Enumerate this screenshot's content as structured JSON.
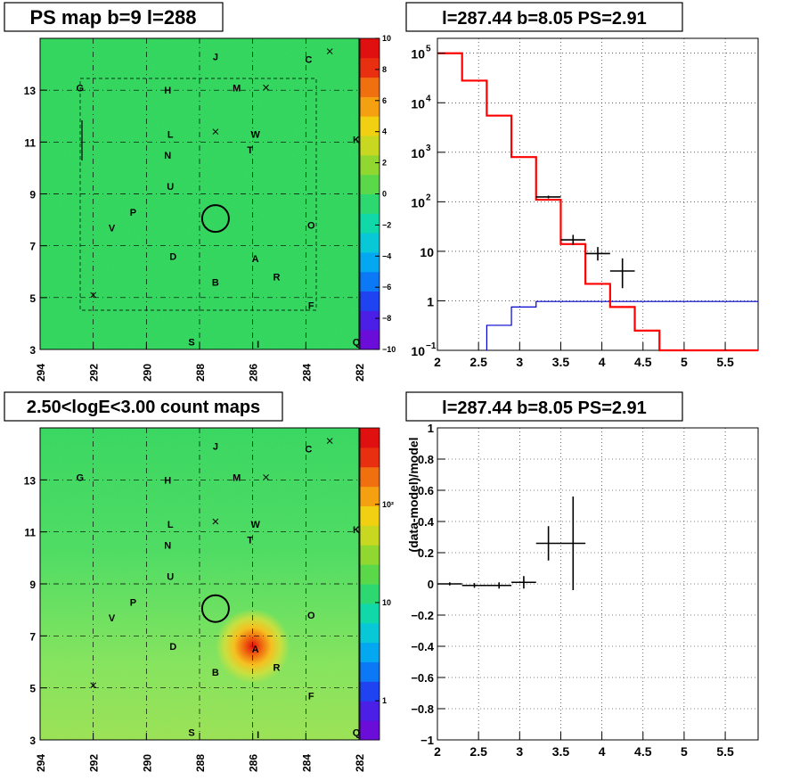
{
  "panels": {
    "tl": {
      "title": "PS map b=9 l=288",
      "x_ticks": [
        "294",
        "292",
        "290",
        "288",
        "286",
        "284",
        "282"
      ],
      "y_ticks": [
        "3",
        "5",
        "7",
        "9",
        "11",
        "13"
      ],
      "colorbar_ticks": [
        "10",
        "8",
        "6",
        "4",
        "2",
        "0",
        "−2",
        "−4",
        "−6",
        "−8",
        "−10"
      ]
    },
    "tr": {
      "title": "l=287.44 b=8.05 PS=2.91",
      "x_ticks": [
        "2",
        "2.5",
        "3",
        "3.5",
        "4",
        "4.5",
        "5",
        "5.5"
      ],
      "y_ticks": [
        {
          "base": "10",
          "exp": "5"
        },
        {
          "base": "10",
          "exp": "4"
        },
        {
          "base": "10",
          "exp": "3"
        },
        {
          "base": "10",
          "exp": "2"
        },
        {
          "base": "10",
          "exp": ""
        },
        {
          "base": "1",
          "exp": ""
        },
        {
          "base": "10",
          "exp": "−1"
        }
      ]
    },
    "bl": {
      "title": "2.50<logE<3.00 count maps",
      "x_ticks": [
        "294",
        "292",
        "290",
        "288",
        "286",
        "284",
        "282"
      ],
      "y_ticks": [
        "3",
        "5",
        "7",
        "9",
        "11",
        "13"
      ],
      "colorbar_ticks": [
        "10²",
        "10",
        "1"
      ]
    },
    "br": {
      "title": "l=287.44 b=8.05 PS=2.91",
      "ylabel": "(data-model)/model",
      "x_ticks": [
        "2",
        "2.5",
        "3",
        "3.5",
        "4",
        "4.5",
        "5",
        "5.5"
      ],
      "y_ticks": [
        "1",
        "0.8",
        "0.6",
        "0.4",
        "0.2",
        "0",
        "−0.2",
        "−0.4",
        "−0.6",
        "−0.8",
        "−1"
      ]
    }
  },
  "source_labels": [
    {
      "t": "J",
      "l": 287.4,
      "b": 14.3
    },
    {
      "t": "C",
      "l": 283.9,
      "b": 14.2
    },
    {
      "t": "G",
      "l": 292.5,
      "b": 13.1
    },
    {
      "t": "H",
      "l": 289.2,
      "b": 13.0
    },
    {
      "t": "M",
      "l": 286.6,
      "b": 13.1
    },
    {
      "t": "L",
      "l": 289.1,
      "b": 11.3
    },
    {
      "t": "W",
      "l": 285.9,
      "b": 11.3
    },
    {
      "t": "K",
      "l": 282.1,
      "b": 11.1
    },
    {
      "t": "N",
      "l": 289.2,
      "b": 10.5
    },
    {
      "t": "T",
      "l": 286.1,
      "b": 10.7
    },
    {
      "t": "U",
      "l": 289.1,
      "b": 9.3
    },
    {
      "t": "P",
      "l": 290.5,
      "b": 8.3
    },
    {
      "t": "V",
      "l": 291.3,
      "b": 7.7
    },
    {
      "t": "O",
      "l": 283.8,
      "b": 7.8
    },
    {
      "t": "D",
      "l": 289.0,
      "b": 6.6
    },
    {
      "t": "A",
      "l": 285.9,
      "b": 6.5
    },
    {
      "t": "R",
      "l": 285.1,
      "b": 5.8
    },
    {
      "t": "B",
      "l": 287.4,
      "b": 5.6
    },
    {
      "t": "F",
      "l": 283.8,
      "b": 4.7
    },
    {
      "t": "S",
      "l": 288.3,
      "b": 3.3
    },
    {
      "t": "I",
      "l": 285.8,
      "b": 3.2
    },
    {
      "t": "Q",
      "l": 282.1,
      "b": 3.3
    }
  ],
  "markers": [
    {
      "l": 283.1,
      "b": 14.5
    },
    {
      "l": 285.5,
      "b": 13.1
    },
    {
      "l": 287.4,
      "b": 11.4
    },
    {
      "l": 292.0,
      "b": 5.1
    }
  ],
  "circle": {
    "l": 287.4,
    "b": 8.05
  },
  "colors": {
    "map_background": "#2ed25a",
    "hotspot": "#e01010",
    "model_line": "#ff0000",
    "background_line": "#0000cc",
    "data_points": "#000000"
  },
  "chart_data": [
    {
      "panel": "PS map",
      "type": "heatmap",
      "title": "PS map b=9 l=288",
      "xlim": [
        294,
        282
      ],
      "ylim": [
        3,
        15
      ],
      "zlim": [
        -10,
        10
      ],
      "values_description_levels": "uniform near 0"
    },
    {
      "panel": "spectrum",
      "type": "line",
      "title": "l=287.44 b=8.05 PS=2.91",
      "xlim": [
        2,
        5.9
      ],
      "ylim": [
        0.1,
        200000
      ],
      "y_scale": "log",
      "series": [
        {
          "role": "model",
          "edges": [
            2.0,
            2.3,
            2.6,
            2.9,
            3.2,
            3.5,
            3.8,
            4.1,
            4.4,
            4.7,
            5.9
          ],
          "values": [
            100000,
            28000,
            5500,
            800,
            110,
            14,
            2.2,
            0.75,
            0.25,
            0.1
          ]
        },
        {
          "role": "background",
          "edges": [
            2.6,
            2.9,
            3.2,
            5.9
          ],
          "values": [
            0.32,
            0.75,
            0.97
          ]
        },
        {
          "role": "data",
          "x": [
            3.35,
            3.65,
            3.95,
            4.25
          ],
          "y": [
            125,
            17,
            9,
            4
          ],
          "xerr": [
            0.15,
            0.15,
            0.15,
            0.15
          ],
          "yerr_lo": [
            8,
            3.5,
            2.5,
            2.2
          ],
          "yerr_hi": [
            8,
            4.5,
            3.2,
            3.2
          ]
        }
      ]
    },
    {
      "panel": "count map",
      "type": "heatmap",
      "title": "2.50<logE<3.00 count maps",
      "xlim": [
        294,
        282
      ],
      "ylim": [
        3,
        15
      ],
      "z_scale": "log",
      "peak": {
        "l": 286.0,
        "b": 6.6
      }
    },
    {
      "panel": "residuals",
      "type": "scatter",
      "title": "l=287.44 b=8.05 PS=2.91",
      "ylabel": "(data-model)/model",
      "xlim": [
        2,
        5.9
      ],
      "ylim": [
        -1,
        1
      ],
      "points": [
        {
          "x": 2.15,
          "y": 0.0,
          "xerr": 0.15,
          "yerr": 0.01
        },
        {
          "x": 2.45,
          "y": -0.01,
          "xerr": 0.15,
          "yerr": 0.015
        },
        {
          "x": 2.75,
          "y": -0.01,
          "xerr": 0.15,
          "yerr": 0.02
        },
        {
          "x": 3.05,
          "y": 0.01,
          "xerr": 0.15,
          "yerr": 0.04
        },
        {
          "x": 3.35,
          "y": 0.26,
          "xerr": 0.15,
          "yerr": 0.11
        },
        {
          "x": 3.65,
          "y": 0.26,
          "xerr": 0.15,
          "yerr": 0.3
        }
      ]
    }
  ]
}
